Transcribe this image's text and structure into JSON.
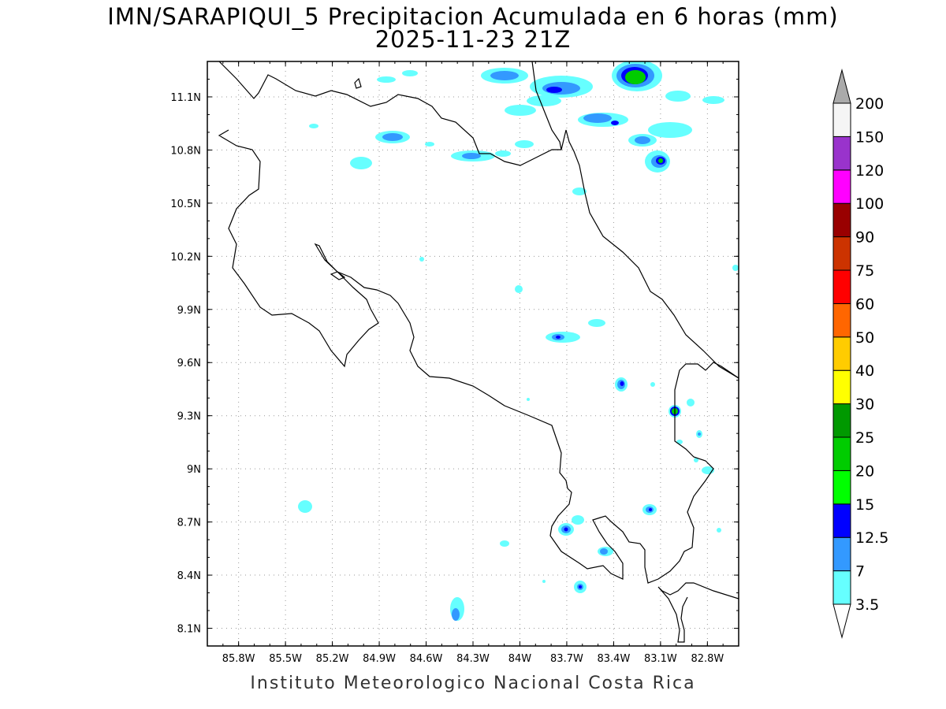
{
  "title": {
    "line1": "IMN/SARAPIQUI_5 Precipitacion Acumulada en 6 horas (mm)",
    "line2": "2025-11-23 21Z"
  },
  "footer": "Instituto Meteorologico Nacional Costa Rica",
  "map": {
    "lon_range": [
      -86.0,
      -82.6
    ],
    "lat_range": [
      8.0,
      11.3
    ],
    "lon_ticks": [
      {
        "value": -85.8,
        "label": "85.8W"
      },
      {
        "value": -85.5,
        "label": "85.5W"
      },
      {
        "value": -85.2,
        "label": "85.2W"
      },
      {
        "value": -84.9,
        "label": "84.9W"
      },
      {
        "value": -84.6,
        "label": "84.6W"
      },
      {
        "value": -84.3,
        "label": "84.3W"
      },
      {
        "value": -84.0,
        "label": "84W"
      },
      {
        "value": -83.7,
        "label": "83.7W"
      },
      {
        "value": -83.4,
        "label": "83.4W"
      },
      {
        "value": -83.1,
        "label": "83.1W"
      },
      {
        "value": -82.8,
        "label": "82.8W"
      }
    ],
    "lat_ticks": [
      {
        "value": 8.1,
        "label": "8.1N"
      },
      {
        "value": 8.4,
        "label": "8.4N"
      },
      {
        "value": 8.7,
        "label": "8.7N"
      },
      {
        "value": 9.0,
        "label": "9N"
      },
      {
        "value": 9.3,
        "label": "9.3N"
      },
      {
        "value": 9.6,
        "label": "9.6N"
      },
      {
        "value": 9.9,
        "label": "9.9N"
      },
      {
        "value": 10.2,
        "label": "10.2N"
      },
      {
        "value": 10.5,
        "label": "10.5N"
      },
      {
        "value": 10.8,
        "label": "10.8N"
      },
      {
        "value": 11.1,
        "label": "11.1N"
      }
    ],
    "grid": true,
    "coastline_color": "#000000"
  },
  "legend": {
    "levels": [
      {
        "label": "3.5",
        "color": "#66ffff"
      },
      {
        "label": "7",
        "color": "#3399ff"
      },
      {
        "label": "12.5",
        "color": "#0000ff"
      },
      {
        "label": "15",
        "color": "#00ff00"
      },
      {
        "label": "20",
        "color": "#00cc00"
      },
      {
        "label": "25",
        "color": "#009900"
      },
      {
        "label": "30",
        "color": "#ffff00"
      },
      {
        "label": "40",
        "color": "#ffcc00"
      },
      {
        "label": "50",
        "color": "#ff6600"
      },
      {
        "label": "60",
        "color": "#ff0000"
      },
      {
        "label": "75",
        "color": "#cc3300"
      },
      {
        "label": "90",
        "color": "#990000"
      },
      {
        "label": "100",
        "color": "#ff00ff"
      },
      {
        "label": "120",
        "color": "#9933cc"
      },
      {
        "label": "150",
        "color": "#f5f5f5"
      },
      {
        "label": "200",
        "color": "#aaaaaa"
      }
    ],
    "bottom_arrow_color": "#ffffff",
    "top_arrow_color": "#aaaaaa"
  }
}
